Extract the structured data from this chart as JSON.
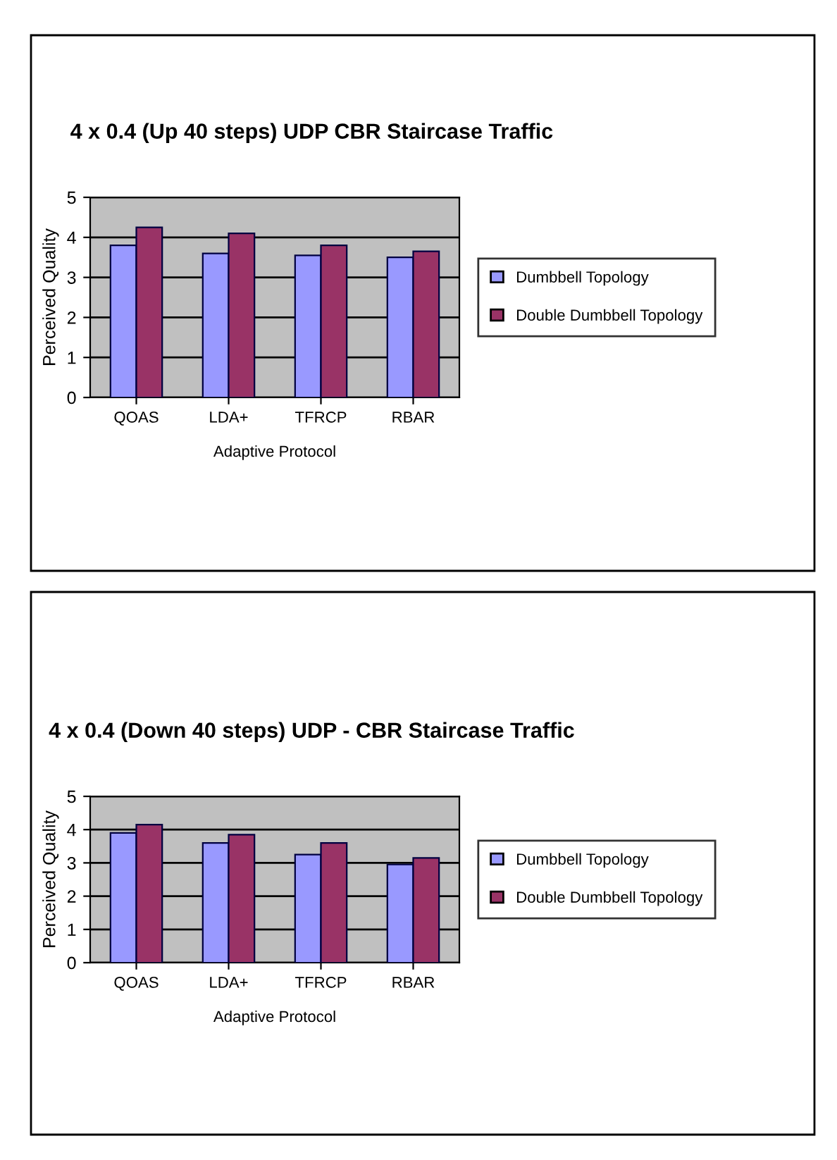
{
  "chart_data": [
    {
      "type": "bar",
      "title": "4 x 0.4 (Up 40 steps) UDP CBR Staircase Traffic",
      "xlabel": "Adaptive Protocol",
      "ylabel": "Perceived Quality",
      "categories": [
        "QOAS",
        "LDA+",
        "TFRCP",
        "RBAR"
      ],
      "series": [
        {
          "name": "Dumbbell Topology",
          "color": "#9999ff",
          "values": [
            3.8,
            3.6,
            3.55,
            3.5
          ]
        },
        {
          "name": "Double Dumbbell Topology",
          "color": "#993366",
          "values": [
            4.25,
            4.1,
            3.8,
            3.65
          ]
        }
      ],
      "ylim": [
        0,
        5
      ],
      "yticks": [
        0,
        1,
        2,
        3,
        4,
        5
      ],
      "grid": "y",
      "legend": "right"
    },
    {
      "type": "bar",
      "title": "4 x 0.4 (Down 40 steps) UDP - CBR Staircase Traffic",
      "xlabel": "Adaptive Protocol",
      "ylabel": "Perceived Quality",
      "categories": [
        "QOAS",
        "LDA+",
        "TFRCP",
        "RBAR"
      ],
      "series": [
        {
          "name": "Dumbbell Topology",
          "color": "#9999ff",
          "values": [
            3.9,
            3.6,
            3.25,
            2.95
          ]
        },
        {
          "name": "Double Dumbbell Topology",
          "color": "#993366",
          "values": [
            4.15,
            3.85,
            3.6,
            3.15
          ]
        }
      ],
      "ylim": [
        0,
        5
      ],
      "yticks": [
        0,
        1,
        2,
        3,
        4,
        5
      ],
      "grid": "y",
      "legend": "right"
    }
  ]
}
